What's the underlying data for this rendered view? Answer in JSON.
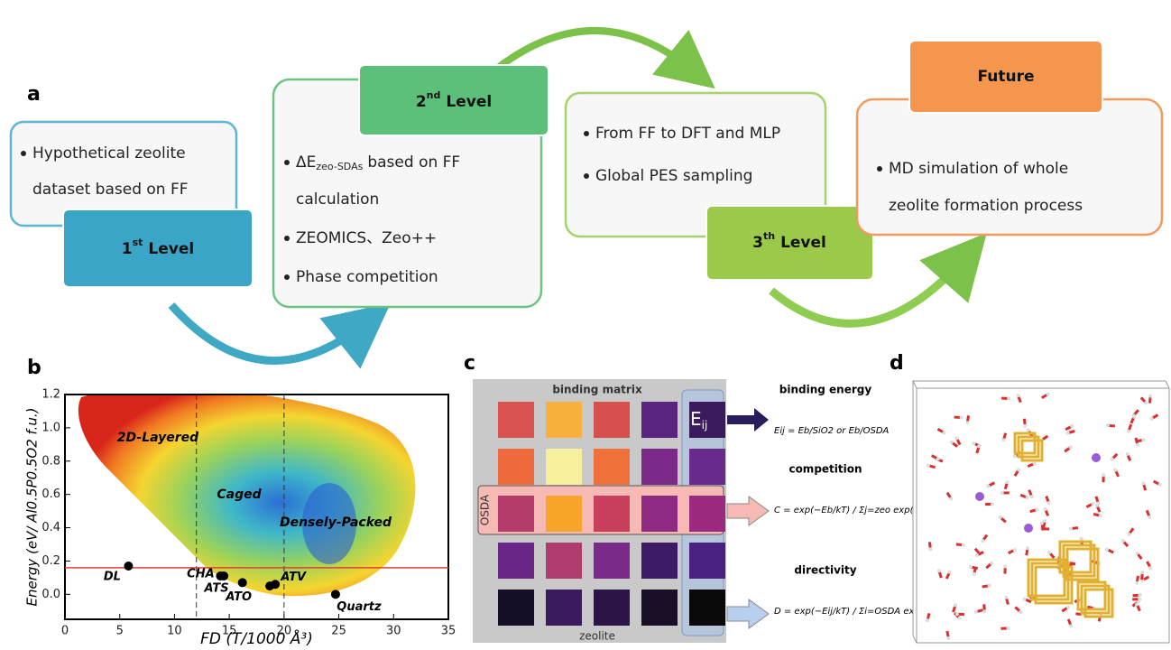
{
  "panel_a": {
    "label": "a",
    "box1": {
      "lines": [
        "Hypothetical zeolite",
        "dataset based on FF"
      ],
      "tab": {
        "number": "1",
        "suffix": "st",
        "word": "Level"
      }
    },
    "box2": {
      "tab": {
        "number": "2",
        "suffix": "nd",
        "word": "Level"
      },
      "delta": "ΔE",
      "delta_sub": "zeo-SDAs",
      "delta_rest": "based on FF",
      "lines": [
        "calculation",
        "ZEOMICS、Zeo++",
        "Phase competition"
      ]
    },
    "box3": {
      "lines": [
        "From FF to DFT and MLP",
        "Global PES sampling"
      ],
      "tab": {
        "number": "3",
        "suffix": "th",
        "word": "Level"
      }
    },
    "box4": {
      "tab": "Future",
      "lines": [
        "MD simulation of whole",
        "zeolite formation process"
      ]
    }
  },
  "chart_data": {
    "type": "scatter",
    "panel_label": "b",
    "x_label": "FD (T/1000 Å³)",
    "y_label": "Energy (eV/ Al0.5P0.5O2 f.u.)",
    "xlim": [
      0,
      35
    ],
    "xticks": [
      0,
      5,
      10,
      15,
      20,
      25,
      30,
      35
    ],
    "ylim": [
      -0.15,
      1.2
    ],
    "yticks": [
      {
        "value": 0,
        "label": "0.0"
      },
      0.2,
      0.4,
      0.6,
      0.8,
      {
        "value": 1,
        "label": "1.0"
      },
      1.2
    ],
    "series": [
      {
        "color": "#000000",
        "x": [
          5.8,
          14.2,
          14.5,
          16.2,
          18.7,
          19.2,
          24.7
        ],
        "values": [
          0.17,
          0.11,
          0.11,
          0.07,
          0.05,
          0.06,
          0.0
        ],
        "labels": [
          "DL",
          "CHA",
          "ATS",
          "ATO",
          null,
          "ATV",
          "Quartz"
        ]
      }
    ],
    "hline": {
      "value": 0.16,
      "color": "#e0413c"
    },
    "vlines": [
      12,
      20
    ],
    "region_labels": [
      "2D-Layered",
      "Caged",
      "Densely-Packed"
    ]
  },
  "panel_c": {
    "label": "c",
    "title": "binding matrix",
    "row_label": "OSDA",
    "col_label": "zeolite",
    "e": "E",
    "e_sub": "ij",
    "cells": [
      [
        "#d9524f",
        "#f7b13c",
        "#d8504e",
        "#5a2580",
        "#3b1b5e"
      ],
      [
        "#ef6a3c",
        "#f7ee9e",
        "#f0703a",
        "#7c2a8a",
        "#6a2a8c"
      ],
      [
        "#b53c6a",
        "#f7a52a",
        "#c8405e",
        "#8e2a82",
        "#9a2a80"
      ],
      [
        "#6a2686",
        "#b03c6e",
        "#7a2a88",
        "#3c1a66",
        "#4a2080"
      ],
      [
        "#150e26",
        "#3a1c5c",
        "#2c1446",
        "#1a0e26",
        "#0a0a0a"
      ]
    ],
    "formulas": [
      {
        "title": "binding energy",
        "text": "Eij = Eb/SiO2  or  Eb/OSDA"
      },
      {
        "title": "competition",
        "text": "C = exp(−Eb/kT) / Σj=zeo exp(−Eij/kT)"
      },
      {
        "title": "directivity",
        "text": "D = exp(−Eij/kT) / Σi=OSDA exp(−Eij/kT)"
      }
    ]
  },
  "panel_d": {
    "label": "d"
  }
}
